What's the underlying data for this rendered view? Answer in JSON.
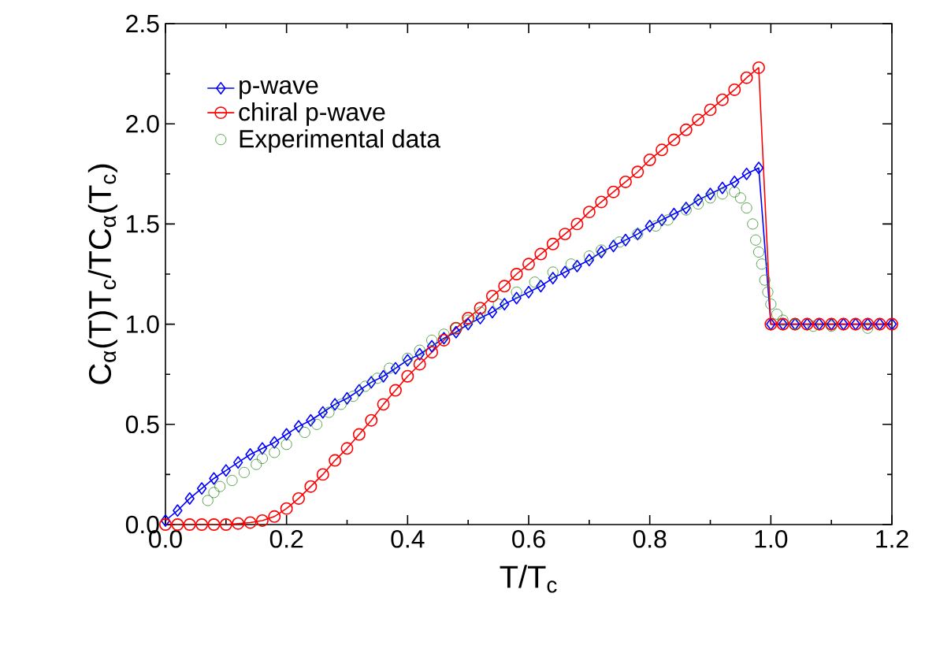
{
  "chart_data": {
    "type": "line",
    "xlabel": "T/T$_{c}$",
    "ylabel": "C$_{α}$(T)T$_{c}$/TC$_{α}$(T$_{c}$)",
    "xlim": [
      0,
      1.2
    ],
    "ylim": [
      0,
      2.5
    ],
    "xticks": [
      {
        "value": 0,
        "label": "0.0"
      },
      0.2,
      0.4,
      0.6,
      0.8,
      {
        "value": 1,
        "label": "1.0"
      },
      1.2
    ],
    "yticks": [
      {
        "value": 0,
        "label": "0.0"
      },
      0.5,
      {
        "value": 1,
        "label": "1.0"
      },
      1.5,
      {
        "value": 2,
        "label": "2.0"
      },
      2.5
    ],
    "legend": "top left",
    "grid": false,
    "series": [
      {
        "name": "p-wave",
        "marker": "diamond",
        "color": "#0000ff",
        "x": [
          0,
          0.02,
          0.04,
          0.06,
          0.08,
          0.1,
          0.12,
          0.14,
          0.16,
          0.18,
          0.2,
          0.22,
          0.24,
          0.26,
          0.28,
          0.3,
          0.32,
          0.34,
          0.36,
          0.38,
          0.4,
          0.42,
          0.44,
          0.46,
          0.48,
          0.5,
          0.52,
          0.54,
          0.56,
          0.58,
          0.6,
          0.62,
          0.64,
          0.66,
          0.68,
          0.7,
          0.72,
          0.74,
          0.76,
          0.78,
          0.8,
          0.82,
          0.84,
          0.86,
          0.88,
          0.9,
          0.92,
          0.94,
          0.96,
          0.98,
          1.0,
          1.02,
          1.04,
          1.06,
          1.08,
          1.1,
          1.12,
          1.14,
          1.16,
          1.18,
          1.2
        ],
        "values": [
          0.02,
          0.07,
          0.13,
          0.18,
          0.23,
          0.27,
          0.31,
          0.35,
          0.38,
          0.41,
          0.45,
          0.49,
          0.52,
          0.56,
          0.6,
          0.63,
          0.67,
          0.71,
          0.74,
          0.78,
          0.82,
          0.85,
          0.89,
          0.93,
          0.96,
          1.0,
          1.03,
          1.06,
          1.1,
          1.13,
          1.16,
          1.19,
          1.23,
          1.26,
          1.29,
          1.32,
          1.36,
          1.39,
          1.42,
          1.45,
          1.49,
          1.52,
          1.55,
          1.58,
          1.62,
          1.65,
          1.68,
          1.71,
          1.75,
          1.78,
          1.0,
          1.0,
          1.0,
          1.0,
          1.0,
          1.0,
          1.0,
          1.0,
          1.0,
          1.0,
          1.0
        ]
      },
      {
        "name": "chiral p-wave",
        "marker": "circle",
        "color": "#ff0000",
        "x": [
          0,
          0.02,
          0.04,
          0.06,
          0.08,
          0.1,
          0.12,
          0.14,
          0.16,
          0.18,
          0.2,
          0.22,
          0.24,
          0.26,
          0.28,
          0.3,
          0.32,
          0.34,
          0.36,
          0.38,
          0.4,
          0.42,
          0.44,
          0.46,
          0.48,
          0.5,
          0.52,
          0.54,
          0.56,
          0.58,
          0.6,
          0.62,
          0.64,
          0.66,
          0.68,
          0.7,
          0.72,
          0.74,
          0.76,
          0.78,
          0.8,
          0.82,
          0.84,
          0.86,
          0.88,
          0.9,
          0.92,
          0.94,
          0.96,
          0.98,
          1.0,
          1.02,
          1.04,
          1.06,
          1.08,
          1.1,
          1.12,
          1.14,
          1.16,
          1.18,
          1.2
        ],
        "values": [
          0,
          0,
          0,
          0,
          0,
          0,
          0.005,
          0.01,
          0.02,
          0.04,
          0.08,
          0.13,
          0.19,
          0.25,
          0.32,
          0.38,
          0.45,
          0.52,
          0.6,
          0.67,
          0.74,
          0.8,
          0.86,
          0.92,
          0.98,
          1.03,
          1.08,
          1.14,
          1.19,
          1.25,
          1.3,
          1.35,
          1.4,
          1.45,
          1.5,
          1.56,
          1.61,
          1.66,
          1.71,
          1.76,
          1.82,
          1.87,
          1.92,
          1.97,
          2.02,
          2.07,
          2.12,
          2.17,
          2.23,
          2.28,
          1.0,
          1.0,
          1.0,
          1.0,
          1.0,
          1.0,
          1.0,
          1.0,
          1.0,
          1.0,
          1.0
        ]
      },
      {
        "name": "Experimental data",
        "type": "scatter",
        "marker": "circle",
        "color": "#2e8b22",
        "x": [
          0.07,
          0.08,
          0.09,
          0.11,
          0.13,
          0.15,
          0.16,
          0.18,
          0.2,
          0.23,
          0.25,
          0.27,
          0.29,
          0.31,
          0.33,
          0.35,
          0.37,
          0.4,
          0.42,
          0.44,
          0.46,
          0.48,
          0.5,
          0.52,
          0.55,
          0.58,
          0.61,
          0.64,
          0.67,
          0.7,
          0.72,
          0.75,
          0.78,
          0.81,
          0.83,
          0.86,
          0.88,
          0.9,
          0.92,
          0.94,
          0.95,
          0.96,
          0.97,
          0.975,
          0.98,
          0.985,
          0.99,
          0.995,
          1.0,
          1.01,
          1.02,
          1.04,
          1.07,
          1.1,
          1.16
        ],
        "values": [
          0.12,
          0.16,
          0.19,
          0.22,
          0.26,
          0.3,
          0.33,
          0.36,
          0.4,
          0.46,
          0.5,
          0.56,
          0.6,
          0.64,
          0.69,
          0.73,
          0.78,
          0.83,
          0.87,
          0.92,
          0.95,
          0.98,
          1.02,
          1.06,
          1.1,
          1.16,
          1.21,
          1.26,
          1.3,
          1.34,
          1.37,
          1.41,
          1.45,
          1.49,
          1.52,
          1.57,
          1.6,
          1.63,
          1.65,
          1.66,
          1.63,
          1.58,
          1.5,
          1.42,
          1.36,
          1.3,
          1.22,
          1.16,
          1.1,
          1.05,
          1.02,
          1.0,
          0.99,
          0.99,
          0.98
        ]
      }
    ]
  }
}
